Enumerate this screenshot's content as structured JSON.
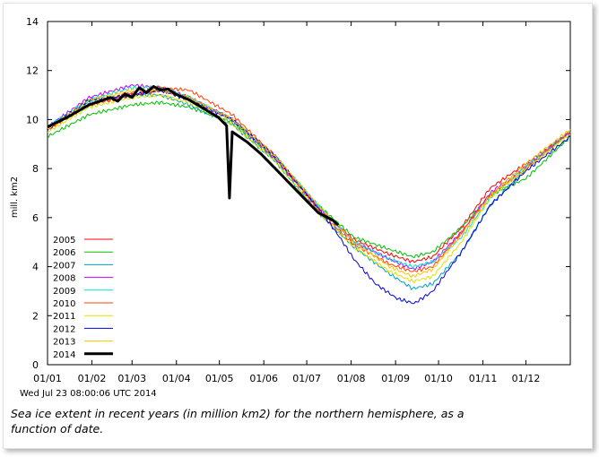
{
  "timestamp": "Wed Jul 23 08:00:06 UTC 2014",
  "caption": "Sea ice extent in recent years (in million km2) for the northern hemisphere, as a function of date.",
  "chart_data": {
    "type": "line",
    "xlabel": "",
    "ylabel": "mill. km2",
    "ylim": [
      0,
      14
    ],
    "yticks": [
      "0",
      "2",
      "4",
      "6",
      "8",
      "10",
      "12",
      "14"
    ],
    "xlim": [
      1,
      366
    ],
    "xticks": [
      {
        "label": "01/01",
        "day": 1
      },
      {
        "label": "01/02",
        "day": 32
      },
      {
        "label": "01/03",
        "day": 60
      },
      {
        "label": "01/04",
        "day": 91
      },
      {
        "label": "01/05",
        "day": 121
      },
      {
        "label": "01/06",
        "day": 152
      },
      {
        "label": "01/07",
        "day": 182
      },
      {
        "label": "01/08",
        "day": 213
      },
      {
        "label": "01/09",
        "day": 244
      },
      {
        "label": "01/10",
        "day": 274
      },
      {
        "label": "01/11",
        "day": 305
      },
      {
        "label": "01/12",
        "day": 335
      }
    ],
    "grid": false,
    "legend_position": "left",
    "series": [
      {
        "name": "2005",
        "color": "#ff0000",
        "width": 1,
        "x": [
          1,
          30,
          60,
          80,
          100,
          130,
          160,
          190,
          215,
          240,
          256,
          270,
          290,
          310,
          335,
          366
        ],
        "y": [
          9.6,
          10.6,
          11.0,
          11.2,
          10.9,
          10.0,
          8.5,
          6.4,
          5.1,
          4.5,
          4.2,
          4.4,
          5.6,
          7.2,
          8.2,
          9.5
        ]
      },
      {
        "name": "2006",
        "color": "#00c000",
        "width": 1,
        "x": [
          1,
          30,
          60,
          80,
          100,
          130,
          160,
          190,
          215,
          240,
          256,
          270,
          290,
          310,
          335,
          366
        ],
        "y": [
          9.3,
          10.2,
          10.6,
          10.7,
          10.5,
          9.9,
          8.4,
          6.5,
          5.2,
          4.7,
          4.4,
          4.6,
          5.6,
          6.9,
          7.6,
          9.3
        ]
      },
      {
        "name": "2007",
        "color": "#00a0c0",
        "width": 1,
        "x": [
          1,
          30,
          60,
          80,
          100,
          130,
          160,
          190,
          215,
          240,
          256,
          270,
          290,
          310,
          335,
          366
        ],
        "y": [
          9.7,
          10.7,
          11.0,
          11.0,
          10.6,
          9.8,
          8.3,
          6.2,
          4.8,
          3.7,
          3.1,
          3.3,
          4.6,
          6.5,
          8.0,
          9.5
        ]
      },
      {
        "name": "2008",
        "color": "#c000ff",
        "width": 1,
        "x": [
          1,
          30,
          60,
          80,
          100,
          130,
          160,
          190,
          215,
          240,
          256,
          270,
          290,
          310,
          335,
          366
        ],
        "y": [
          9.7,
          10.9,
          11.4,
          11.3,
          10.9,
          10.0,
          8.4,
          6.4,
          5.0,
          4.3,
          3.9,
          4.2,
          5.4,
          7.0,
          8.1,
          9.5
        ]
      },
      {
        "name": "2009",
        "color": "#00e0e0",
        "width": 1,
        "x": [
          1,
          30,
          60,
          80,
          100,
          130,
          160,
          190,
          215,
          240,
          256,
          270,
          290,
          310,
          335,
          366
        ],
        "y": [
          9.7,
          10.8,
          11.3,
          11.3,
          10.9,
          10.0,
          8.5,
          6.5,
          5.0,
          4.3,
          4.0,
          4.2,
          5.2,
          6.8,
          8.1,
          9.5
        ]
      },
      {
        "name": "2010",
        "color": "#ff4000",
        "width": 1,
        "x": [
          1,
          30,
          60,
          80,
          100,
          130,
          160,
          190,
          215,
          240,
          256,
          270,
          290,
          310,
          335,
          366
        ],
        "y": [
          9.6,
          10.6,
          11.1,
          11.3,
          11.2,
          10.2,
          8.5,
          6.3,
          4.9,
          4.1,
          3.8,
          4.0,
          5.4,
          6.9,
          8.0,
          9.5
        ]
      },
      {
        "name": "2011",
        "color": "#e0e000",
        "width": 1,
        "x": [
          1,
          30,
          60,
          80,
          100,
          130,
          160,
          190,
          215,
          240,
          256,
          270,
          290,
          310,
          335,
          366
        ],
        "y": [
          9.5,
          10.5,
          10.9,
          11.0,
          10.7,
          9.8,
          8.3,
          6.2,
          4.8,
          3.8,
          3.4,
          3.6,
          5.0,
          6.8,
          8.0,
          9.4
        ]
      },
      {
        "name": "2012",
        "color": "#0000e0",
        "width": 1,
        "x": [
          1,
          30,
          60,
          80,
          100,
          130,
          160,
          190,
          205,
          215,
          230,
          245,
          257,
          270,
          290,
          310,
          335,
          366
        ],
        "y": [
          9.6,
          10.8,
          11.0,
          11.2,
          10.8,
          10.0,
          8.5,
          6.4,
          5.2,
          4.3,
          3.3,
          2.7,
          2.5,
          3.0,
          4.6,
          6.5,
          7.9,
          9.3
        ]
      },
      {
        "name": "2013",
        "color": "#ffc000",
        "width": 1,
        "x": [
          1,
          30,
          60,
          80,
          100,
          130,
          160,
          190,
          215,
          240,
          256,
          270,
          290,
          310,
          335,
          366
        ],
        "y": [
          9.6,
          10.8,
          11.2,
          11.2,
          10.9,
          10.0,
          8.5,
          6.5,
          5.0,
          4.0,
          3.6,
          3.9,
          5.3,
          6.9,
          8.2,
          9.6
        ]
      },
      {
        "name": "2014",
        "color": "#000000",
        "width": 3,
        "x": [
          1,
          15,
          30,
          45,
          50,
          55,
          60,
          65,
          70,
          75,
          80,
          85,
          90,
          100,
          110,
          120,
          126,
          128,
          130,
          140,
          150,
          160,
          170,
          180,
          190,
          200,
          204
        ],
        "y": [
          9.7,
          10.1,
          10.6,
          10.9,
          10.75,
          11.05,
          10.9,
          11.3,
          11.1,
          11.35,
          11.2,
          11.25,
          11.05,
          10.8,
          10.45,
          10.1,
          9.75,
          6.8,
          9.5,
          9.1,
          8.6,
          8.0,
          7.4,
          6.8,
          6.2,
          5.9,
          5.7
        ]
      }
    ]
  }
}
